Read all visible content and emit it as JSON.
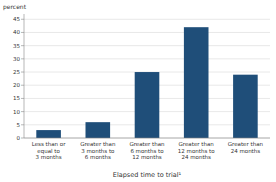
{
  "chart_data": {
    "type": "bar",
    "categories": [
      "Less than or\nequal to\n3 months",
      "Greater than\n3 months to\n6 months",
      "Greater than\n6 months to\n12 months",
      "Greater than\n12 months to\n24 months",
      "Greater than\n24 months"
    ],
    "values": [
      3.0,
      6.0,
      25.0,
      42.0,
      24.0
    ],
    "color": "#1F4E79",
    "ylabel": "percent",
    "xlabel": "Elapsed time to trial¹",
    "ylim": [
      0,
      47
    ],
    "yticks": [
      0,
      5,
      10,
      15,
      20,
      25,
      30,
      35,
      40,
      45
    ],
    "grid": true
  }
}
